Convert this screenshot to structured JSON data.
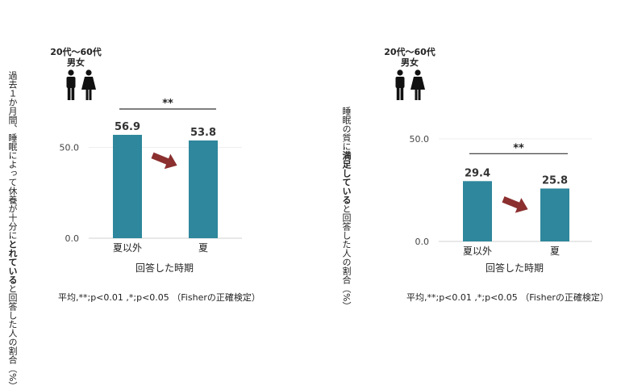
{
  "colors": {
    "bar": "#2e879c",
    "arrow": "#8b2f2f",
    "axis": "#d9d9d9",
    "text": "#222222"
  },
  "chart_data": [
    {
      "type": "bar",
      "demographic": {
        "age": "20代～60代",
        "gender": "男女"
      },
      "ylabel_parts": {
        "pre": "過去１か月間、睡眠によって休養が十分に",
        "bold": "とれている",
        "post": "と回答した人の割合（%）"
      },
      "categories": [
        "夏以外",
        "夏"
      ],
      "values": [
        56.9,
        53.8
      ],
      "value_labels": [
        "56.9",
        "53.8"
      ],
      "ylim": [
        0,
        100
      ],
      "yticks": [
        0,
        50
      ],
      "ytick_labels": [
        "0.0",
        "50.0"
      ],
      "xlabel": "回答した時期",
      "significance": "**",
      "footnote": "平均,**;p<0.01 ,*;p<0.05 （Fisherの正確検定）"
    },
    {
      "type": "bar",
      "demographic": {
        "age": "20代～60代",
        "gender": "男女"
      },
      "ylabel_parts": {
        "pre": "睡眠の質に",
        "bold": "満足している",
        "post": "と回答した人の割合（%）"
      },
      "categories": [
        "夏以外",
        "夏"
      ],
      "values": [
        29.4,
        25.8
      ],
      "value_labels": [
        "29.4",
        "25.8"
      ],
      "ylim": [
        0,
        50
      ],
      "yticks": [
        0,
        50
      ],
      "ytick_labels": [
        "0.0",
        "50.0"
      ],
      "xlabel": "回答した時期",
      "significance": "**",
      "footnote": "平均,**;p<0.01 ,*;p<0.05 （Fisherの正確検定）"
    }
  ]
}
